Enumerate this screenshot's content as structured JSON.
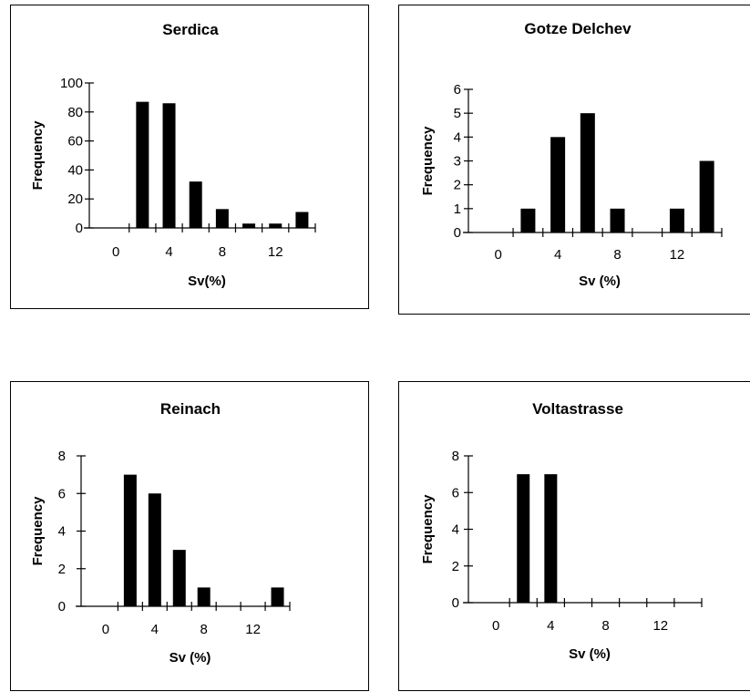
{
  "chart_data": [
    {
      "type": "bar",
      "title": "Serdica",
      "xlabel": "Sv(%)",
      "ylabel": "Frequency",
      "x": [
        2,
        4,
        6,
        8,
        10,
        12,
        14
      ],
      "values": [
        87,
        86,
        32,
        13,
        3,
        3,
        11
      ],
      "xlim": [
        -2,
        15
      ],
      "ylim": [
        0,
        100
      ],
      "yticks": [
        0,
        20,
        40,
        60,
        80,
        100
      ],
      "xtick_labels": [
        "0",
        "4",
        "8",
        "12"
      ],
      "grid": false,
      "color": "#000000"
    },
    {
      "type": "bar",
      "title": "Gotze Delchev",
      "xlabel": "Sv (%)",
      "ylabel": "Frequency",
      "x": [
        2,
        4,
        6,
        8,
        12,
        14
      ],
      "values": [
        1,
        4,
        5,
        1,
        1,
        3
      ],
      "xlim": [
        -2,
        15
      ],
      "ylim": [
        0,
        6
      ],
      "yticks": [
        0,
        1,
        2,
        3,
        4,
        5,
        6
      ],
      "xtick_labels": [
        "0",
        "4",
        "8",
        "12"
      ],
      "grid": false,
      "color": "#000000"
    },
    {
      "type": "bar",
      "title": "Reinach",
      "xlabel": "Sv (%)",
      "ylabel": "Frequency",
      "x": [
        2,
        4,
        6,
        8,
        14
      ],
      "values": [
        7,
        6,
        3,
        1,
        1
      ],
      "xlim": [
        -2,
        15
      ],
      "ylim": [
        0,
        8
      ],
      "yticks": [
        0,
        2,
        4,
        6,
        8
      ],
      "xtick_labels": [
        "0",
        "4",
        "8",
        "12"
      ],
      "grid": false,
      "color": "#000000"
    },
    {
      "type": "bar",
      "title": "Voltastrasse",
      "xlabel": "Sv (%)",
      "ylabel": "Frequency",
      "x": [
        2,
        4
      ],
      "values": [
        7,
        7
      ],
      "xlim": [
        -2,
        15
      ],
      "ylim": [
        0,
        8
      ],
      "yticks": [
        0,
        2,
        4,
        6,
        8
      ],
      "xtick_labels": [
        "0",
        "4",
        "8",
        "12"
      ],
      "grid": false,
      "color": "#000000"
    }
  ]
}
